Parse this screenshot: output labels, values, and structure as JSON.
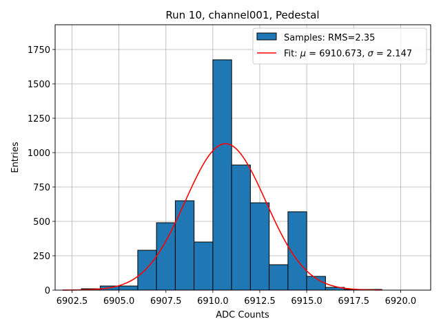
{
  "chart_data": {
    "type": "bar",
    "title": "Run 10, channel001, Pedestal",
    "xlabel": "ADC Counts",
    "ylabel": "Entries",
    "xlim": [
      6901.6,
      6921.6
    ],
    "ylim": [
      0,
      1930
    ],
    "grid": true,
    "legend_position": "top-right",
    "xticks": [
      6902.5,
      6905.0,
      6907.5,
      6910.0,
      6912.5,
      6915.0,
      6917.5,
      6920.0
    ],
    "xtick_labels": [
      "6902.5",
      "6905.0",
      "6907.5",
      "6910.0",
      "6912.5",
      "6915.0",
      "6917.5",
      "6920.0"
    ],
    "yticks": [
      0,
      250,
      500,
      750,
      1000,
      1250,
      1500,
      1750
    ],
    "ytick_labels": [
      "0",
      "250",
      "500",
      "750",
      "1000",
      "1250",
      "1500",
      "1750"
    ],
    "series": [
      {
        "name": "Samples: RMS=2.35",
        "kind": "histogram",
        "color": "#1f77b4",
        "edge_color": "#000000",
        "bins": [
          {
            "x0": 6902,
            "x1": 6903,
            "value": 0
          },
          {
            "x0": 6903,
            "x1": 6904,
            "value": 10
          },
          {
            "x0": 6904,
            "x1": 6905,
            "value": 30
          },
          {
            "x0": 6905,
            "x1": 6906,
            "value": 30
          },
          {
            "x0": 6906,
            "x1": 6907,
            "value": 290
          },
          {
            "x0": 6907,
            "x1": 6908,
            "value": 490
          },
          {
            "x0": 6908,
            "x1": 6909,
            "value": 650
          },
          {
            "x0": 6909,
            "x1": 6910,
            "value": 350
          },
          {
            "x0": 6910,
            "x1": 6911,
            "value": 1675
          },
          {
            "x0": 6911,
            "x1": 6912,
            "value": 910
          },
          {
            "x0": 6912,
            "x1": 6913,
            "value": 635
          },
          {
            "x0": 6913,
            "x1": 6914,
            "value": 185
          },
          {
            "x0": 6914,
            "x1": 6915,
            "value": 570
          },
          {
            "x0": 6915,
            "x1": 6916,
            "value": 100
          },
          {
            "x0": 6916,
            "x1": 6917,
            "value": 20
          },
          {
            "x0": 6917,
            "x1": 6918,
            "value": 5
          },
          {
            "x0": 6918,
            "x1": 6919,
            "value": 5
          },
          {
            "x0": 6919,
            "x1": 6920,
            "value": 0
          },
          {
            "x0": 6920,
            "x1": 6921,
            "value": 0
          }
        ]
      },
      {
        "name": "Fit: μ = 6910.673, σ = 2.147",
        "legend_prefix": "Fit: ",
        "mu_symbol": "μ",
        "mu_text": " = 6910.673, ",
        "sigma_symbol": "σ",
        "sigma_text": " = 2.147",
        "kind": "gaussian",
        "color": "#ff0000",
        "amplitude": 1065,
        "mu": 6910.673,
        "sigma": 2.147,
        "x_range": [
          6902,
          6919
        ]
      }
    ]
  }
}
